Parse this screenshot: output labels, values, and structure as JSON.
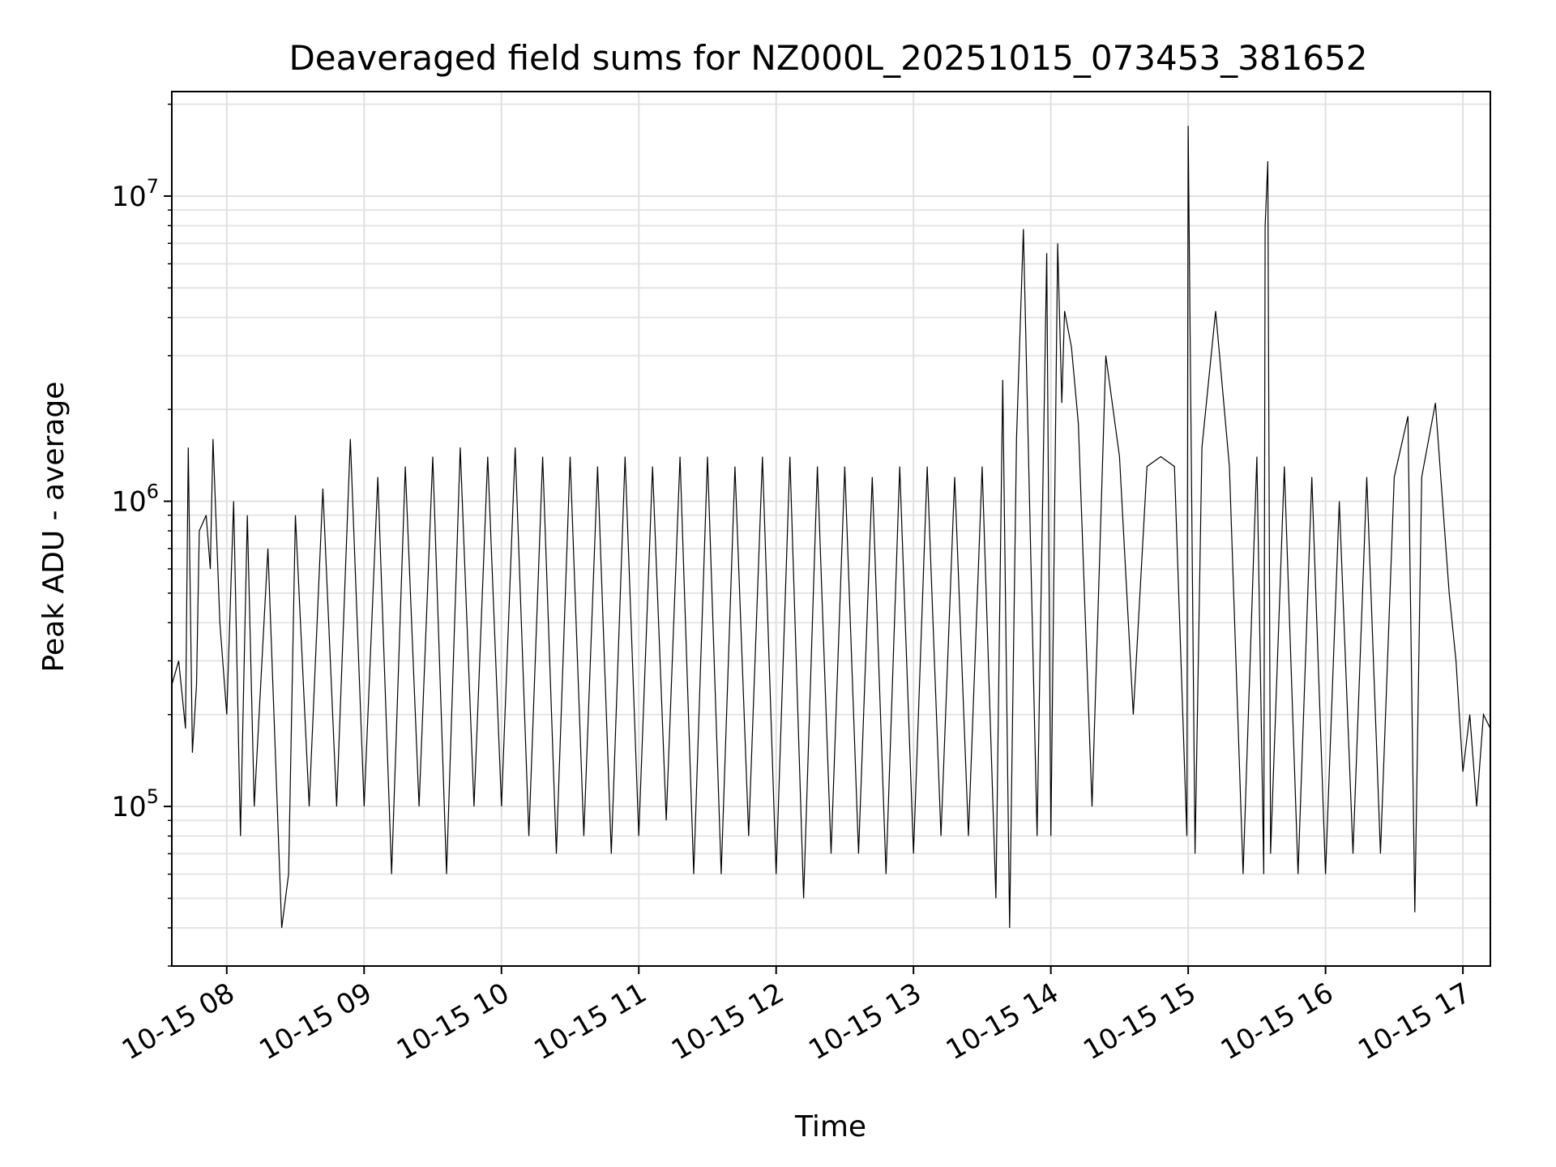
{
  "chart_data": {
    "type": "line",
    "title": "Deaveraged field sums for NZ000L_20251015_073453_381652",
    "xlabel": "Time",
    "ylabel": "Peak ADU - average",
    "yscale": "log",
    "ylim": [
      30000,
      22000000
    ],
    "xlim_hours": [
      7.6,
      17.2
    ],
    "grid": true,
    "line_color": "#000000",
    "x_ticks": [
      {
        "hour": 8,
        "label": "10-15 08"
      },
      {
        "hour": 9,
        "label": "10-15 09"
      },
      {
        "hour": 10,
        "label": "10-15 10"
      },
      {
        "hour": 11,
        "label": "10-15 11"
      },
      {
        "hour": 12,
        "label": "10-15 12"
      },
      {
        "hour": 13,
        "label": "10-15 13"
      },
      {
        "hour": 14,
        "label": "10-15 14"
      },
      {
        "hour": 15,
        "label": "10-15 15"
      },
      {
        "hour": 16,
        "label": "10-15 16"
      },
      {
        "hour": 17,
        "label": "10-15 17"
      }
    ],
    "y_ticks": [
      {
        "value": 100000,
        "base": "10",
        "exp": "5"
      },
      {
        "value": 1000000,
        "base": "10",
        "exp": "6"
      },
      {
        "value": 10000000,
        "base": "10",
        "exp": "7"
      }
    ],
    "series": [
      {
        "name": "Peak ADU - average",
        "hours": [
          7.6,
          7.65,
          7.7,
          7.72,
          7.75,
          7.78,
          7.8,
          7.85,
          7.88,
          7.9,
          7.95,
          8.0,
          8.05,
          8.1,
          8.15,
          8.2,
          8.3,
          8.4,
          8.45,
          8.5,
          8.6,
          8.7,
          8.8,
          8.9,
          9.0,
          9.1,
          9.2,
          9.3,
          9.4,
          9.5,
          9.6,
          9.7,
          9.8,
          9.9,
          10.0,
          10.1,
          10.2,
          10.3,
          10.4,
          10.5,
          10.6,
          10.7,
          10.8,
          10.9,
          11.0,
          11.1,
          11.2,
          11.3,
          11.4,
          11.5,
          11.6,
          11.7,
          11.8,
          11.9,
          12.0,
          12.1,
          12.2,
          12.3,
          12.4,
          12.5,
          12.6,
          12.7,
          12.8,
          12.9,
          13.0,
          13.1,
          13.2,
          13.3,
          13.4,
          13.5,
          13.6,
          13.65,
          13.7,
          13.75,
          13.8,
          13.9,
          13.97,
          14.0,
          14.05,
          14.08,
          14.1,
          14.15,
          14.2,
          14.3,
          14.4,
          14.5,
          14.6,
          14.7,
          14.8,
          14.9,
          14.99,
          15.0,
          15.05,
          15.1,
          15.2,
          15.3,
          15.4,
          15.5,
          15.55,
          15.56,
          15.58,
          15.6,
          15.7,
          15.8,
          15.9,
          16.0,
          16.1,
          16.2,
          16.3,
          16.4,
          16.5,
          16.6,
          16.65,
          16.7,
          16.8,
          16.9,
          16.95,
          17.0,
          17.05,
          17.1,
          17.15,
          17.2
        ],
        "values": [
          250000,
          300000,
          180000,
          1500000,
          150000,
          250000,
          800000,
          900000,
          600000,
          1600000,
          400000,
          200000,
          1000000,
          80000,
          900000,
          100000,
          700000,
          40000,
          60000,
          900000,
          100000,
          1100000,
          100000,
          1600000,
          100000,
          1200000,
          60000,
          1300000,
          100000,
          1400000,
          60000,
          1500000,
          100000,
          1400000,
          100000,
          1500000,
          80000,
          1400000,
          70000,
          1400000,
          80000,
          1300000,
          70000,
          1400000,
          80000,
          1300000,
          90000,
          1400000,
          60000,
          1400000,
          60000,
          1300000,
          80000,
          1400000,
          60000,
          1400000,
          50000,
          1300000,
          70000,
          1300000,
          70000,
          1200000,
          60000,
          1300000,
          70000,
          1300000,
          80000,
          1200000,
          80000,
          1300000,
          50000,
          2500000,
          40000,
          1600000,
          7800000,
          80000,
          6500000,
          80000,
          7000000,
          2100000,
          4200000,
          3200000,
          1800000,
          100000,
          3000000,
          1400000,
          200000,
          1300000,
          1400000,
          1300000,
          80000,
          17000000,
          70000,
          1500000,
          4200000,
          1300000,
          60000,
          1400000,
          60000,
          8000000,
          13000000,
          70000,
          1300000,
          60000,
          1200000,
          60000,
          1000000,
          70000,
          1200000,
          70000,
          1200000,
          1900000,
          45000,
          1200000,
          2100000,
          500000,
          300000,
          130000,
          200000,
          100000,
          200000,
          180000
        ]
      }
    ]
  }
}
